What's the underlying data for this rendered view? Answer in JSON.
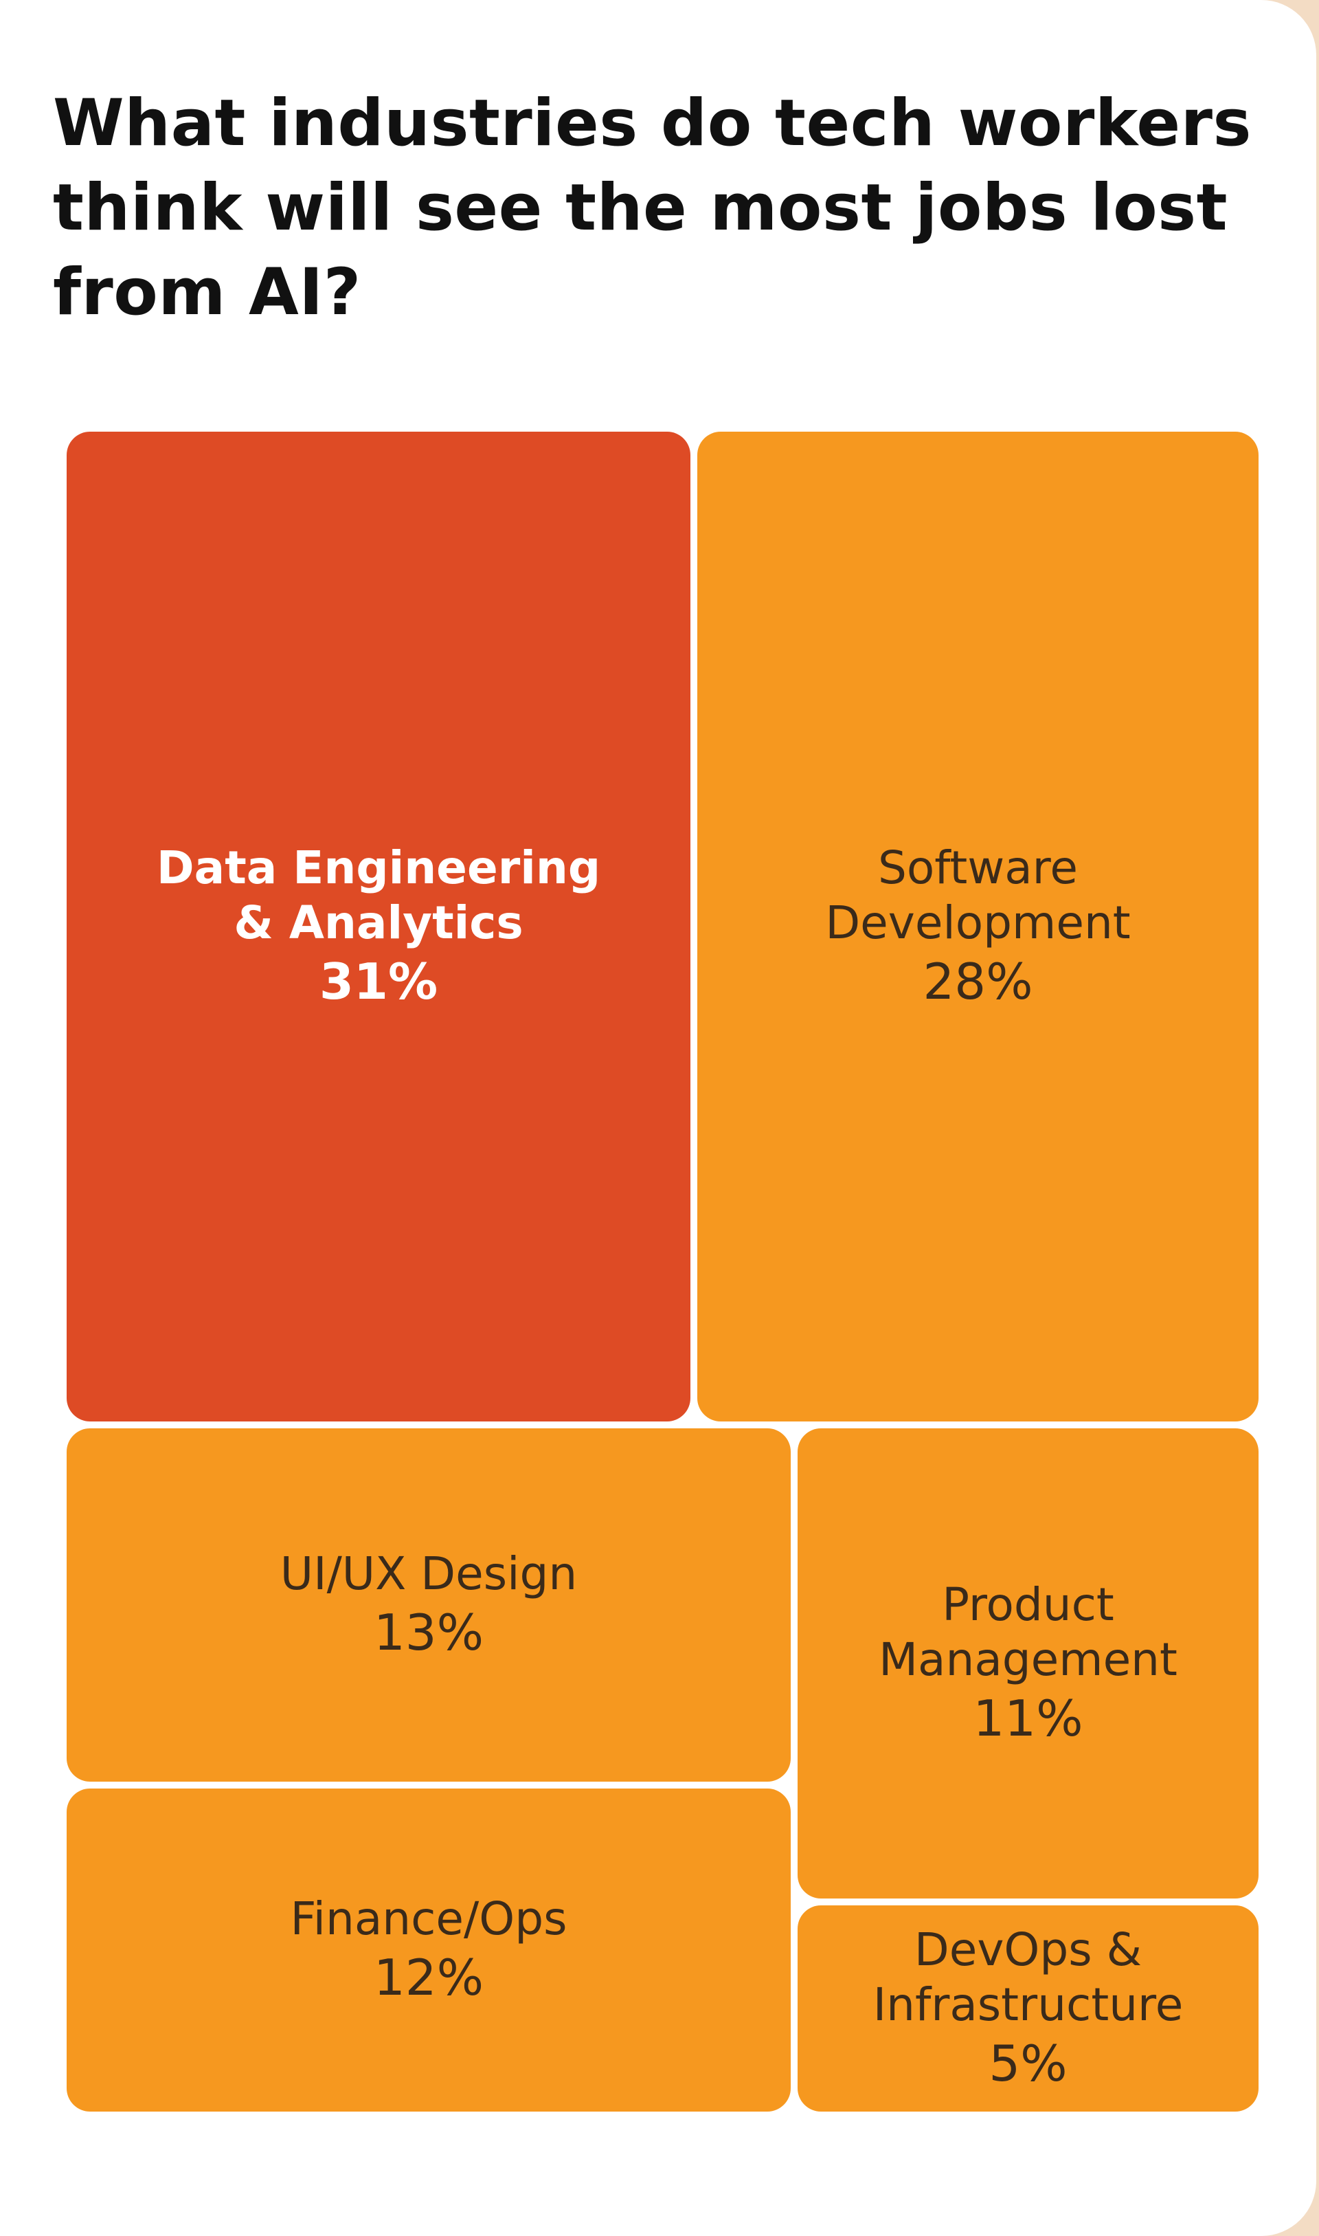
{
  "title": "What industries do tech workers think will see the most jobs lost from AI?",
  "colors": {
    "page_background": "#F3DCC4",
    "card": "#FFFFFF",
    "highlight": "#DE4B25",
    "default": "#F6981F",
    "highlight_text": "#FFFFFF",
    "default_text": "#3A2A1A"
  },
  "chart_data": {
    "type": "treemap",
    "title": "What industries do tech workers think will see the most jobs lost from AI?",
    "unit": "%",
    "items": [
      {
        "label_lines": [
          "Data Engineering",
          "& Analytics"
        ],
        "pct_text": "31%",
        "value": 31,
        "highlight": true
      },
      {
        "label_lines": [
          "Software",
          "Development"
        ],
        "pct_text": "28%",
        "value": 28,
        "highlight": false
      },
      {
        "label_lines": [
          "UI/UX Design"
        ],
        "pct_text": "13%",
        "value": 13,
        "highlight": false
      },
      {
        "label_lines": [
          "Product",
          "Management"
        ],
        "pct_text": "11%",
        "value": 11,
        "highlight": false
      },
      {
        "label_lines": [
          "Finance/Ops"
        ],
        "pct_text": "12%",
        "value": 12,
        "highlight": false
      },
      {
        "label_lines": [
          "DevOps &",
          "Infrastructure"
        ],
        "pct_text": "5%",
        "value": 5,
        "highlight": false
      }
    ]
  }
}
